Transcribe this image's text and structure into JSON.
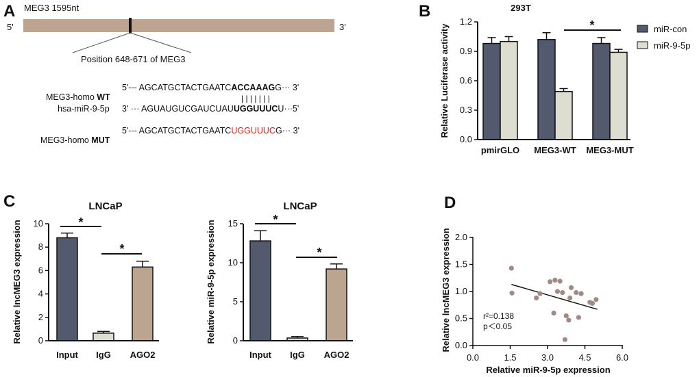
{
  "panel_labels": {
    "a": "A",
    "b": "B",
    "c": "C",
    "d": "D"
  },
  "panel_a": {
    "gene_label": "MEG3  1595nt",
    "five_prime": "5'",
    "three_prime": "3'",
    "position_label": "Position 648-671 of MEG3",
    "wt_label_prefix": "MEG3-homo ",
    "wt_label_bold": "WT",
    "wt_seq_start": "5'--- AGCATGCTACTGAATC",
    "wt_seq_bold": "ACCAAAG",
    "wt_seq_end": "G··· 3'",
    "pairing": "| | | | | | |",
    "mir_label": "hsa-miR-9-5p",
    "mir_seq_start": "3' ··· AGUAUGUCGAUCUAU",
    "mir_seq_bold": "UGGUUUC",
    "mir_seq_end": "U···5'",
    "mut_label_prefix": "MEG3-homo ",
    "mut_label_bold": "MUT",
    "mut_seq_start": "5'--- AGCATGCTACTGAATC",
    "mut_seq_red": "UGGUUUC",
    "mut_seq_end": "G··· 3'"
  },
  "colors": {
    "dark": "#535a6e",
    "light": "#ddddd0",
    "tan": "#bba591",
    "line": "#111111",
    "dot": "#a08a86",
    "mutant_red": "#e0201b"
  },
  "chart_data": [
    {
      "id": "B",
      "type": "bar",
      "title": "293T",
      "ylabel": "Relative Luciferase activity",
      "xlabel": "",
      "categories": [
        "pmirGLO",
        "MEG3-WT",
        "MEG3-MUT"
      ],
      "series": [
        {
          "name": "miR-con",
          "values": [
            0.98,
            1.02,
            0.98
          ],
          "errors": [
            0.06,
            0.07,
            0.06
          ]
        },
        {
          "name": "miR-9-5p",
          "values": [
            1.0,
            0.49,
            0.89
          ],
          "errors": [
            0.05,
            0.03,
            0.03
          ]
        }
      ],
      "ylim": [
        0,
        1.2
      ],
      "yticks": [
        "0.0",
        "0.3",
        "0.6",
        "0.9",
        "1.2"
      ],
      "legend": "right",
      "annotations": [
        {
          "text": "*",
          "between": "MEG3-WT miR-9-5p / MEG3-MUT miR-9-5p"
        }
      ]
    },
    {
      "id": "C1",
      "type": "bar",
      "title": "LNCaP",
      "ylabel": "Relative lncMEG3 expression",
      "xlabel": "",
      "categories": [
        "Input",
        "IgG",
        "AGO2"
      ],
      "values": [
        8.8,
        0.65,
        6.3
      ],
      "errors": [
        0.4,
        0.15,
        0.5
      ],
      "ylim": [
        0,
        10
      ],
      "yticks": [
        "0",
        "2",
        "4",
        "6",
        "8",
        "10"
      ],
      "annotations": [
        {
          "text": "*",
          "between": "Input / IgG"
        },
        {
          "text": "*",
          "between": "IgG / AGO2"
        }
      ]
    },
    {
      "id": "C2",
      "type": "bar",
      "title": "LNCaP",
      "ylabel": "Relative miR-9-5p expression",
      "xlabel": "",
      "categories": [
        "Input",
        "IgG",
        "AGO2"
      ],
      "values": [
        12.8,
        0.35,
        9.2
      ],
      "errors": [
        1.3,
        0.2,
        0.65
      ],
      "ylim": [
        0,
        15
      ],
      "yticks": [
        "0",
        "5",
        "10",
        "15"
      ],
      "annotations": [
        {
          "text": "*",
          "between": "Input / IgG"
        },
        {
          "text": "*",
          "between": "IgG / AGO2"
        }
      ]
    },
    {
      "id": "D",
      "type": "scatter",
      "title": "",
      "xlabel": "Relative miR-9-5p expression",
      "ylabel": "Relative lncMEG3 expression",
      "xlim": [
        0,
        6
      ],
      "ylim": [
        0,
        2
      ],
      "xticks": [
        "0.0",
        "1.5",
        "3.0",
        "4.5",
        "6.0"
      ],
      "yticks": [
        "0.0",
        "0.5",
        "1.0",
        "1.5",
        "2.0"
      ],
      "points": [
        [
          1.55,
          1.43
        ],
        [
          1.57,
          0.97
        ],
        [
          2.55,
          0.88
        ],
        [
          2.7,
          0.96
        ],
        [
          3.1,
          1.18
        ],
        [
          3.3,
          1.21
        ],
        [
          3.5,
          1.19
        ],
        [
          3.25,
          0.6
        ],
        [
          3.4,
          1.0
        ],
        [
          3.6,
          0.98
        ],
        [
          3.75,
          0.55
        ],
        [
          3.85,
          0.47
        ],
        [
          3.9,
          0.88
        ],
        [
          3.95,
          1.07
        ],
        [
          4.15,
          0.98
        ],
        [
          4.25,
          0.52
        ],
        [
          4.35,
          0.96
        ],
        [
          4.7,
          0.8
        ],
        [
          4.8,
          0.78
        ],
        [
          4.95,
          0.85
        ],
        [
          3.7,
          0.11
        ]
      ],
      "fit_line": {
        "x": [
          1.55,
          5.0
        ],
        "y": [
          1.13,
          0.67
        ]
      },
      "stats_r2": "r²=0.138",
      "stats_p": "p＜0.05"
    }
  ]
}
